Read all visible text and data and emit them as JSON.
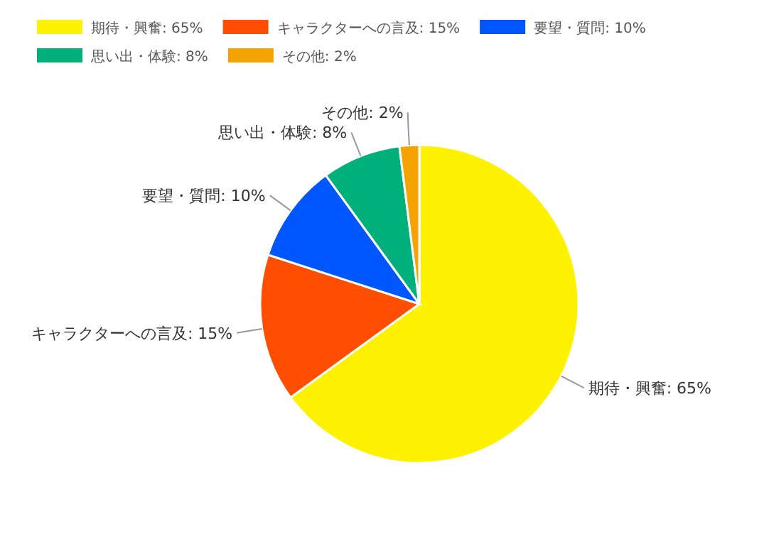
{
  "chart_data": {
    "type": "pie",
    "categories": [
      "期待・興奮",
      "キャラクターへの言及",
      "要望・質問",
      "思い出・体験",
      "その他"
    ],
    "values": [
      65,
      15,
      10,
      8,
      2
    ],
    "value_labels": [
      "65%",
      "15%",
      "10%",
      "8%",
      "2%"
    ],
    "colors": [
      "#fff200",
      "#ff4e00",
      "#0057ff",
      "#00b07a",
      "#f5a300"
    ],
    "legend": "top left"
  }
}
